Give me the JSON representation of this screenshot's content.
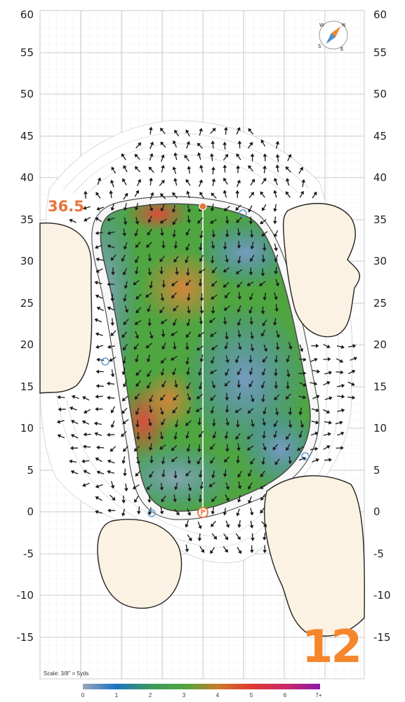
{
  "map": {
    "hole_number": "12",
    "elevation_label": "36.5",
    "scale_note": "Scale: 3/8\" = 5yds",
    "y_axis_labels": [
      "60",
      "55",
      "50",
      "45",
      "40",
      "35",
      "30",
      "25",
      "20",
      "15",
      "10",
      "5",
      "0",
      "-5",
      "-10",
      "-15"
    ],
    "legend_ticks": [
      "0",
      "1",
      "2",
      "3",
      "4",
      "5",
      "6",
      "7+"
    ],
    "compass_letters": [
      "N",
      "E",
      "S",
      "W"
    ],
    "colors": {
      "accent": "#f5862b",
      "sand": "#fbf2e3",
      "slope_blue": "#4a8fd0",
      "slope_green": "#4fa540",
      "slope_orange": "#d9843a",
      "slope_red": "#e2483a",
      "grid": "#c8c8c8"
    },
    "icons": [
      "compass-icon",
      "pin-marker-icon",
      "sprinkler-icon",
      "flag-icon"
    ]
  }
}
